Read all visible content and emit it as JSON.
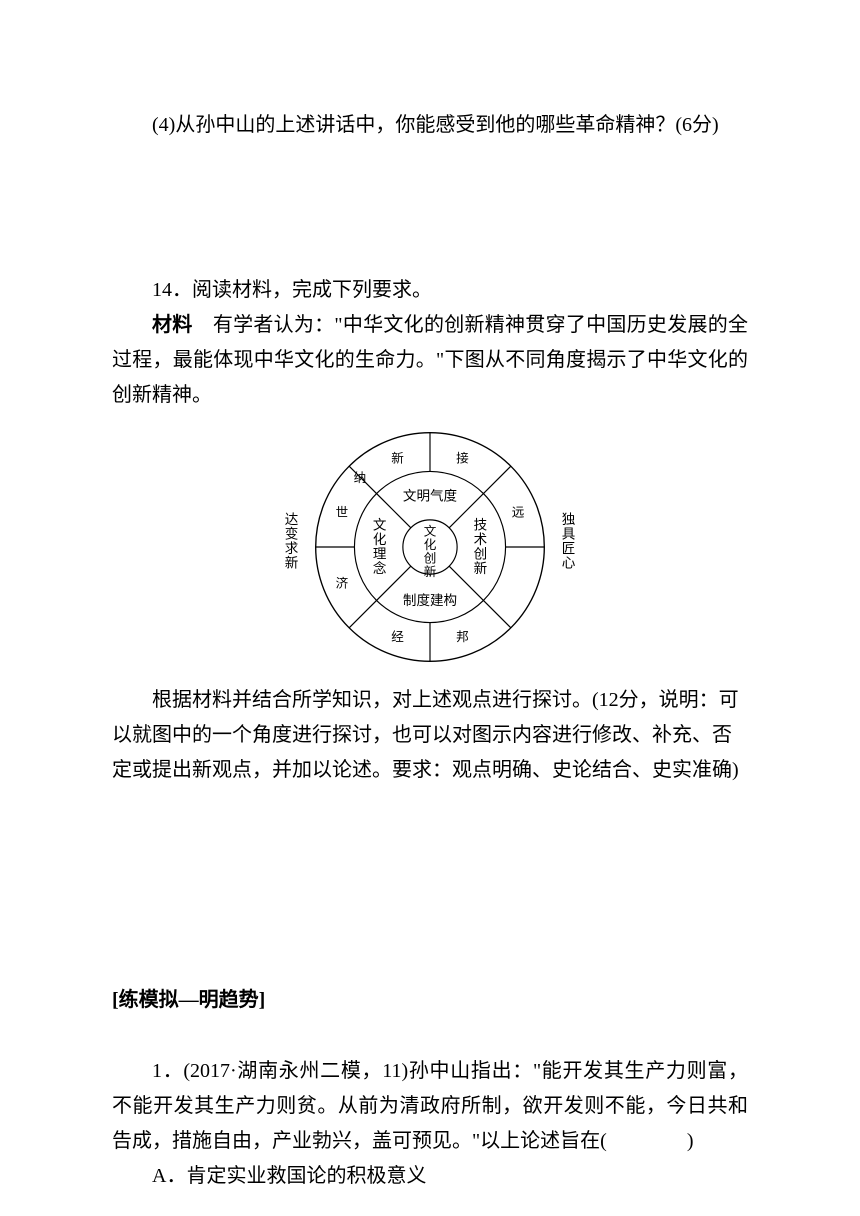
{
  "q4": {
    "text": "(4)从孙中山的上述讲话中，你能感受到他的哪些革命精神？(6分)"
  },
  "q14": {
    "heading": "14．阅读材料，完成下列要求。",
    "material_label": "材料",
    "material_body": "　有学者认为：\"中华文化的创新精神贯穿了中国历史发展的全过程，最能体现中华文化的生命力。\"下图从不同角度揭示了中华文化的创新精神。",
    "instruction": "　　根据材料并结合所学知识，对上述观点进行探讨。(12分，说明：可以就图中的一个角度进行探讨，也可以对图示内容进行修改、补充、否定或提出新观点，并加以论述。要求：观点明确、史论结合、史实准确)",
    "diagram": {
      "center": "文化创新",
      "middle": {
        "top": "文明气度",
        "right": "技术创新",
        "bottom": "制度建构",
        "left": "文化理念"
      },
      "outer": {
        "top_left": "新",
        "top_right": "接",
        "right_top": "远",
        "right_bottom": "独具匠心",
        "bottom_right": "邦",
        "bottom_left": "经",
        "left_bottom": "济",
        "left_top": "世",
        "far_left": "达变求新",
        "upper_left": "纳"
      },
      "radii": {
        "inner": 28,
        "middle": 78,
        "outer": 118
      },
      "stroke": "#000000",
      "bg": "#ffffff",
      "font_center": 13,
      "font_mid": 14,
      "font_outer": 13,
      "font_side": 14
    }
  },
  "section2": {
    "title": "练模拟—明趋势"
  },
  "mcq1": {
    "prefix": "1．(2017·湖南永州二模，11)孙中山指出：\"能开发其生产力则富，不能开发其生产力则贫。从前为清政府所制，欲开发则不能，今日共和告成，措施自由，产业勃兴，盖可预见。\"以上论述旨在(",
    "suffix": ")",
    "options": {
      "A": "A．肯定实业救国论的积极意义"
    }
  }
}
